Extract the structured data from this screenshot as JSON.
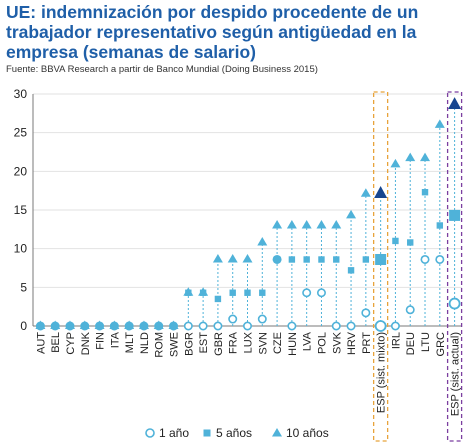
{
  "title": "UE: indemnización por despido procedente de un trabajador representativo según antigüedad en la empresa (semanas de salario)",
  "source": "Fuente: BBVA Research a partir de Banco Mundial (Doing Business 2015)",
  "chart_data": {
    "type": "scatter",
    "title": "UE: indemnización por despido procedente de un trabajador representativo según antigüedad en la empresa (semanas de salario)",
    "ylim": [
      0,
      30
    ],
    "yticks": [
      0,
      5,
      10,
      15,
      20,
      25,
      30
    ],
    "grid": true,
    "legend_position": "bottom",
    "categories": [
      "AUT",
      "BEL",
      "CYP",
      "DNK",
      "FIN",
      "ITA",
      "MLT",
      "NLD",
      "ROM",
      "SWE",
      "BGR",
      "EST",
      "GBR",
      "FRA",
      "LUX",
      "SVN",
      "CZE",
      "HUN",
      "LVA",
      "POL",
      "SVK",
      "HRV",
      "PRT",
      "ESP (sist. mixto)",
      "IRL",
      "DEU",
      "LTU",
      "GRC",
      "ESP (sist. actual)"
    ],
    "series": [
      {
        "name": "1 año",
        "values": [
          0,
          0,
          0,
          0,
          0,
          0,
          0,
          0,
          0,
          0,
          0,
          0,
          0,
          0.9,
          0,
          0.9,
          8.6,
          0,
          4.3,
          4.3,
          0,
          0,
          1.7,
          0,
          0,
          2.1,
          8.6,
          8.6,
          2.9
        ]
      },
      {
        "name": "5 años",
        "values": [
          0,
          0,
          0,
          0,
          0,
          0,
          0,
          0,
          0,
          0,
          4.3,
          4.3,
          3.5,
          4.3,
          4.3,
          4.3,
          8.6,
          8.6,
          8.6,
          8.6,
          8.6,
          7.2,
          8.6,
          8.6,
          11.0,
          10.8,
          17.3,
          13.0,
          14.3
        ]
      },
      {
        "name": "10 años",
        "values": [
          0,
          0,
          0,
          0,
          0,
          0,
          0,
          0,
          0,
          0,
          4.3,
          4.3,
          8.6,
          8.6,
          8.6,
          10.8,
          13.0,
          13.0,
          13.0,
          13.0,
          13.0,
          14.3,
          17.1,
          17.1,
          20.9,
          21.7,
          21.7,
          26.0,
          28.6
        ]
      }
    ],
    "highlighted": [
      "ESP (sist. mixto)",
      "ESP (sist. actual)"
    ],
    "colors": {
      "series": "#4fb2d9",
      "highlight": "#17468f",
      "axis": "#7a7a7a",
      "grid": "#e2e2e2",
      "box_mixto": "#e8a33b",
      "box_actual": "#7b3fa0",
      "title": "#1f5fa8"
    }
  }
}
